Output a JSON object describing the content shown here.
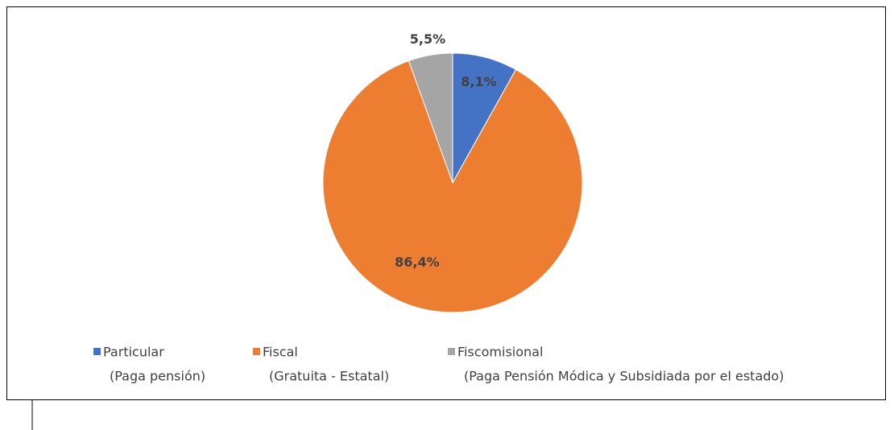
{
  "chart_data": {
    "type": "pie",
    "categories": [
      "Particular",
      "Fiscal",
      "Fiscomisional"
    ],
    "category_notes": [
      "(Paga pensión)",
      "(Gratuita - Estatal)",
      "(Paga Pensión Módica y Subsidiada por el estado)"
    ],
    "values": [
      8.1,
      86.4,
      5.5
    ],
    "value_labels": [
      "8,1%",
      "86,4%",
      "5,5%"
    ],
    "colors": [
      "#4472c4",
      "#ed7d31",
      "#a5a5a5"
    ],
    "legend": "bottom"
  }
}
